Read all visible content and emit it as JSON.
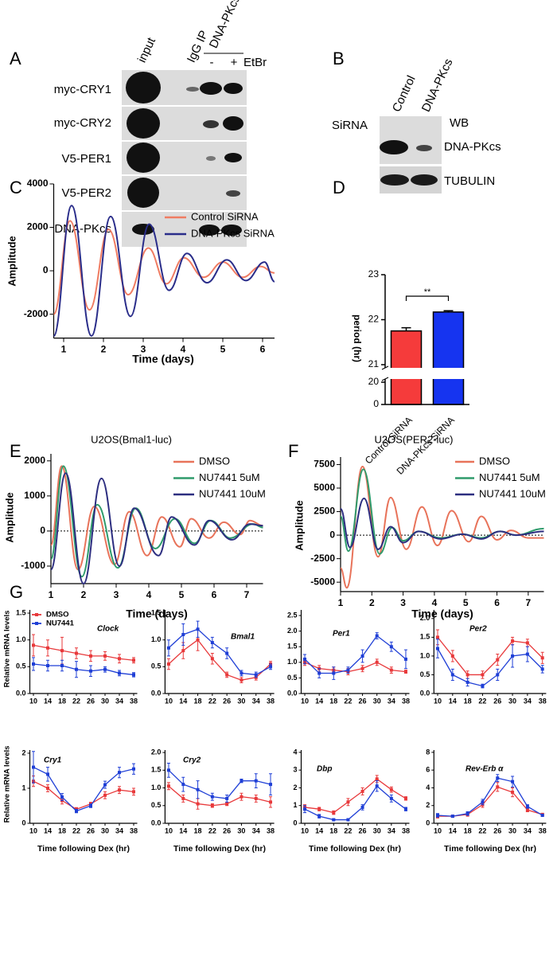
{
  "panel_a": {
    "label": "A",
    "columns": [
      "input",
      "IgG IP"
    ],
    "ip_label": "DNA-PKcs IP",
    "lanes": [
      "-",
      "+"
    ],
    "treatment": "EtBr",
    "rows": [
      "myc-CRY1",
      "myc-CRY2",
      "V5-PER1",
      "V5-PER2",
      "DNA-PKcs"
    ]
  },
  "panel_b": {
    "label": "B",
    "row_title": "SiRNA",
    "columns": [
      "Control",
      "DNA-PKcs"
    ],
    "method": "WB",
    "rows": [
      "DNA-PKcs",
      "TUBULIN"
    ]
  },
  "chart_data": [
    {
      "type": "line",
      "panel_label": "C",
      "ylabel": "Amplitude",
      "xlabel": "Time (days)",
      "xlim": [
        0.75,
        6.3
      ],
      "xticks": [
        1,
        2,
        3,
        4,
        5,
        6
      ],
      "ylim": [
        -3100,
        4000
      ],
      "yticks": [
        -2000,
        0,
        2000,
        4000
      ],
      "legend": true,
      "series": [
        {
          "name": "Control SiRNA",
          "color": "#f07c62",
          "x": [
            0.75,
            1.16,
            1.65,
            2.13,
            2.62,
            3.13,
            3.58,
            4.02,
            4.52,
            5.0,
            5.5,
            5.95,
            6.3
          ],
          "values": [
            -2000,
            2300,
            -1800,
            1900,
            -1100,
            1050,
            -600,
            600,
            -300,
            400,
            -300,
            200,
            -100
          ]
        },
        {
          "name": "DNA-PKcs SiRNA",
          "color": "#2a2d8a",
          "x": [
            0.75,
            1.2,
            1.7,
            2.18,
            2.68,
            3.15,
            3.65,
            4.1,
            4.6,
            5.1,
            5.58,
            6.05,
            6.3
          ],
          "values": [
            -3000,
            3000,
            -3000,
            2500,
            -2100,
            2150,
            -900,
            800,
            -550,
            500,
            -450,
            400,
            -500
          ]
        }
      ]
    },
    {
      "type": "bar",
      "panel_label": "D",
      "ylabel": "period (hr)",
      "categories": [
        "Control SiRNA",
        "DNA-PKcs SiRNA"
      ],
      "values": [
        21.75,
        22.17
      ],
      "errors": [
        0.07,
        0.03
      ],
      "colors": [
        "#f53b3b",
        "#1634f0"
      ],
      "ylim": [
        0,
        23
      ],
      "yticks": [
        0,
        20,
        21,
        22,
        23
      ],
      "axis_break": [
        20,
        21
      ],
      "annotation": "**"
    },
    {
      "type": "line",
      "panel_label": "E",
      "title": "U2OS(Bmal1-luc)",
      "ylabel": "Amplitude",
      "xlabel": "Time (days)",
      "xlim": [
        1,
        7.5
      ],
      "xticks": [
        1,
        2,
        3,
        4,
        5,
        6,
        7
      ],
      "ylim": [
        -1500,
        2200
      ],
      "yticks": [
        -1000,
        0,
        1000,
        2000
      ],
      "zero_line": true,
      "legend": true,
      "series": [
        {
          "name": "DMSO",
          "color": "#e8735a",
          "x": [
            1,
            1.33,
            1.83,
            2.33,
            2.95,
            3.4,
            3.95,
            4.4,
            4.95,
            5.3,
            5.85,
            6.3,
            6.8,
            7.1,
            7.5
          ],
          "values": [
            -400,
            1850,
            -1100,
            700,
            -950,
            550,
            -700,
            400,
            -450,
            350,
            -200,
            250,
            -100,
            300,
            150
          ]
        },
        {
          "name": "NU7441 5uM",
          "color": "#2f9b6c",
          "x": [
            1,
            1.38,
            1.95,
            2.42,
            3.05,
            3.6,
            4.2,
            4.8,
            5.4,
            5.9,
            6.5,
            7.2,
            7.5
          ],
          "values": [
            -800,
            1850,
            -1300,
            750,
            -1050,
            650,
            -500,
            350,
            -350,
            300,
            -200,
            200,
            100
          ]
        },
        {
          "name": "NU7441 10uM",
          "color": "#2d2e80",
          "x": [
            1,
            1.45,
            2.0,
            2.55,
            3.1,
            3.55,
            4.3,
            4.7,
            5.4,
            5.85,
            6.55,
            7.1,
            7.5
          ],
          "values": [
            -1100,
            1650,
            -1500,
            1500,
            -1000,
            650,
            -700,
            400,
            -400,
            300,
            -250,
            200,
            150
          ]
        }
      ]
    },
    {
      "type": "line",
      "panel_label": "F",
      "title": "U2OS(PER2-luc)",
      "ylabel": "Amplitude",
      "xlabel": "Time (days)",
      "xlim": [
        1,
        7.5
      ],
      "xticks": [
        1,
        2,
        3,
        4,
        5,
        6,
        7
      ],
      "ylim": [
        -6000,
        8300
      ],
      "yticks": [
        -5000,
        -2500,
        0,
        2500,
        5000,
        7500
      ],
      "zero_line": true,
      "legend": true,
      "series": [
        {
          "name": "DMSO",
          "color": "#e8735a",
          "x": [
            1,
            1.2,
            1.7,
            2.2,
            2.6,
            3.1,
            3.6,
            4.1,
            4.55,
            5.1,
            5.5,
            6.0,
            6.45,
            7.0,
            7.5
          ],
          "values": [
            -3500,
            -5600,
            7300,
            -2300,
            4000,
            -1500,
            3000,
            -1100,
            2600,
            -700,
            2000,
            -500,
            500,
            -300,
            -300
          ]
        },
        {
          "name": "NU7441 5uM",
          "color": "#2f9b6c",
          "x": [
            1,
            1.25,
            1.73,
            2.25,
            2.65,
            3.0,
            3.5,
            4.2,
            4.9,
            5.5,
            6.1,
            6.6,
            7.5
          ],
          "values": [
            2000,
            -1700,
            7000,
            -2000,
            800,
            -600,
            400,
            -300,
            100,
            -300,
            400,
            0,
            700
          ]
        },
        {
          "name": "NU7441 10uM",
          "color": "#2d2e80",
          "x": [
            1,
            1.3,
            1.75,
            2.2,
            2.6,
            3.0,
            3.5,
            4.2,
            4.9,
            5.5,
            6.1,
            6.6,
            7.5
          ],
          "values": [
            2800,
            -1300,
            3900,
            -1500,
            900,
            -800,
            400,
            -400,
            100,
            -400,
            400,
            0,
            400
          ]
        }
      ]
    },
    {
      "type": "line",
      "panel_label": "G",
      "title": "Clock",
      "ylabel": "Relative mRNA levels",
      "legend": true,
      "x": [
        10,
        14,
        18,
        22,
        26,
        30,
        34,
        38
      ],
      "xlim": [
        9,
        39
      ],
      "xticks": [
        10,
        14,
        18,
        22,
        26,
        30,
        34,
        38
      ],
      "ylim": [
        0,
        1.56
      ],
      "yticks": [
        {
          "value": 0,
          "label": "0.0"
        },
        0.5,
        {
          "value": 1,
          "label": "1.0"
        },
        1.5
      ],
      "series": [
        {
          "name": "DMSO",
          "color": "#e8393b",
          "values": [
            0.9,
            0.85,
            0.8,
            0.75,
            0.7,
            0.7,
            0.65,
            0.62
          ],
          "errors": [
            0.2,
            0.15,
            0.25,
            0.1,
            0.1,
            0.08,
            0.08,
            0.05
          ]
        },
        {
          "name": "NU7441",
          "color": "#1f3fd6",
          "values": [
            0.55,
            0.52,
            0.52,
            0.45,
            0.42,
            0.45,
            0.38,
            0.35
          ],
          "errors": [
            0.12,
            0.1,
            0.1,
            0.15,
            0.1,
            0.05,
            0.05,
            0.04
          ]
        }
      ]
    },
    {
      "type": "line",
      "title": "Bmal1",
      "x": [
        10,
        14,
        18,
        22,
        26,
        30,
        34,
        38
      ],
      "xlim": [
        9,
        39
      ],
      "xticks": [
        10,
        14,
        18,
        22,
        26,
        30,
        34,
        38
      ],
      "ylim": [
        0,
        1.56
      ],
      "yticks": [
        {
          "value": 0,
          "label": "0.0"
        },
        0.5,
        {
          "value": 1,
          "label": "1.0"
        },
        1.5
      ],
      "series": [
        {
          "color": "#e8393b",
          "values": [
            0.55,
            0.8,
            1.0,
            0.65,
            0.35,
            0.25,
            0.3,
            0.55
          ],
          "errors": [
            0.1,
            0.15,
            0.2,
            0.1,
            0.05,
            0.05,
            0.05,
            0.05
          ]
        },
        {
          "color": "#1f3fd6",
          "values": [
            0.85,
            1.1,
            1.2,
            0.95,
            0.75,
            0.38,
            0.35,
            0.5
          ],
          "errors": [
            0.15,
            0.2,
            0.15,
            0.1,
            0.1,
            0.05,
            0.05,
            0.05
          ]
        }
      ]
    },
    {
      "type": "line",
      "title": "Per1",
      "x": [
        10,
        14,
        18,
        22,
        26,
        30,
        34,
        38
      ],
      "xlim": [
        9,
        39
      ],
      "xticks": [
        10,
        14,
        18,
        22,
        26,
        30,
        34,
        38
      ],
      "ylim": [
        0,
        2.68
      ],
      "yticks": [
        {
          "value": 0,
          "label": "0.0"
        },
        0.5,
        {
          "value": 1,
          "label": "1.0"
        },
        1.5,
        {
          "value": 2,
          "label": "2.0"
        },
        2.5
      ],
      "series": [
        {
          "color": "#e8393b",
          "values": [
            1.0,
            0.8,
            0.75,
            0.7,
            0.8,
            1.0,
            0.75,
            0.7
          ],
          "errors": [
            0.1,
            0.1,
            0.1,
            0.1,
            0.1,
            0.1,
            0.1,
            0.05
          ]
        },
        {
          "color": "#1f3fd6",
          "values": [
            1.1,
            0.65,
            0.65,
            0.75,
            1.2,
            1.85,
            1.5,
            1.1
          ],
          "errors": [
            0.15,
            0.15,
            0.2,
            0.1,
            0.2,
            0.1,
            0.15,
            0.3
          ]
        }
      ]
    },
    {
      "type": "line",
      "title": "Per2",
      "x": [
        10,
        14,
        18,
        22,
        26,
        30,
        34,
        38
      ],
      "xlim": [
        9,
        39
      ],
      "xticks": [
        10,
        14,
        18,
        22,
        26,
        30,
        34,
        38
      ],
      "ylim": [
        0,
        2.23
      ],
      "yticks": [
        {
          "value": 0,
          "label": "0.0"
        },
        0.5,
        {
          "value": 1,
          "label": "1.0"
        },
        1.5,
        {
          "value": 2,
          "label": "2.0"
        }
      ],
      "series": [
        {
          "color": "#e8393b",
          "values": [
            1.5,
            1.0,
            0.5,
            0.5,
            0.9,
            1.4,
            1.35,
            0.95
          ],
          "errors": [
            0.2,
            0.15,
            0.1,
            0.1,
            0.15,
            0.1,
            0.1,
            0.15
          ]
        },
        {
          "color": "#1f3fd6",
          "values": [
            1.2,
            0.5,
            0.3,
            0.2,
            0.5,
            1.0,
            1.05,
            0.65
          ],
          "errors": [
            0.25,
            0.15,
            0.1,
            0.05,
            0.15,
            0.3,
            0.2,
            0.1
          ]
        }
      ]
    },
    {
      "type": "line",
      "title": "Cry1",
      "ylabel": "Relative mRNA levels",
      "xlabel": "Time following Dex (hr)",
      "x": [
        10,
        14,
        18,
        22,
        26,
        30,
        34,
        38
      ],
      "xlim": [
        9,
        39
      ],
      "xticks": [
        10,
        14,
        18,
        22,
        26,
        30,
        34,
        38
      ],
      "ylim": [
        0,
        2.09
      ],
      "yticks": [
        0,
        1,
        2
      ],
      "series": [
        {
          "color": "#e8393b",
          "values": [
            1.2,
            1.0,
            0.65,
            0.4,
            0.55,
            0.8,
            0.95,
            0.9
          ],
          "errors": [
            0.15,
            0.1,
            0.1,
            0.05,
            0.05,
            0.1,
            0.1,
            0.1
          ]
        },
        {
          "color": "#1f3fd6",
          "values": [
            1.6,
            1.4,
            0.75,
            0.35,
            0.5,
            1.1,
            1.45,
            1.55
          ],
          "errors": [
            0.45,
            0.2,
            0.1,
            0.05,
            0.05,
            0.1,
            0.15,
            0.15
          ]
        }
      ]
    },
    {
      "type": "line",
      "title": "Cry2",
      "xlabel": "Time following Dex (hr)",
      "x": [
        10,
        14,
        18,
        22,
        26,
        30,
        34,
        38
      ],
      "xlim": [
        9,
        39
      ],
      "xticks": [
        10,
        14,
        18,
        22,
        26,
        30,
        34,
        38
      ],
      "ylim": [
        0,
        2.07
      ],
      "yticks": [
        {
          "value": 0,
          "label": "0.0"
        },
        0.5,
        {
          "value": 1,
          "label": "1.0"
        },
        1.5,
        {
          "value": 2,
          "label": "2.0"
        }
      ],
      "series": [
        {
          "color": "#e8393b",
          "values": [
            1.05,
            0.7,
            0.55,
            0.5,
            0.55,
            0.75,
            0.7,
            0.6
          ],
          "errors": [
            0.1,
            0.1,
            0.15,
            0.05,
            0.05,
            0.1,
            0.1,
            0.15
          ]
        },
        {
          "color": "#1f3fd6",
          "values": [
            1.5,
            1.1,
            0.95,
            0.75,
            0.7,
            1.2,
            1.2,
            1.1
          ],
          "errors": [
            0.2,
            0.2,
            0.25,
            0.1,
            0.1,
            0.05,
            0.2,
            0.3
          ]
        }
      ]
    },
    {
      "type": "line",
      "title": "Dbp",
      "xlabel": "Time following Dex (hr)",
      "x": [
        10,
        14,
        18,
        22,
        26,
        30,
        34,
        38
      ],
      "xlim": [
        9,
        39
      ],
      "xticks": [
        10,
        14,
        18,
        22,
        26,
        30,
        34,
        38
      ],
      "ylim": [
        0,
        4.13
      ],
      "yticks": [
        0,
        1,
        2,
        3,
        4
      ],
      "series": [
        {
          "color": "#e8393b",
          "values": [
            0.9,
            0.8,
            0.6,
            1.2,
            1.8,
            2.5,
            1.9,
            1.4
          ],
          "errors": [
            0.15,
            0.1,
            0.1,
            0.2,
            0.2,
            0.2,
            0.15,
            0.1
          ]
        },
        {
          "color": "#1f3fd6",
          "values": [
            0.8,
            0.4,
            0.2,
            0.2,
            0.9,
            2.1,
            1.4,
            0.8
          ],
          "errors": [
            0.2,
            0.1,
            0.05,
            0.05,
            0.15,
            0.3,
            0.2,
            0.1
          ]
        }
      ]
    },
    {
      "type": "line",
      "title": "Rev-Erb α",
      "xlabel": "Time following Dex (hr)",
      "x": [
        10,
        14,
        18,
        22,
        26,
        30,
        34,
        38
      ],
      "xlim": [
        9,
        39
      ],
      "xticks": [
        10,
        14,
        18,
        22,
        26,
        30,
        34,
        38
      ],
      "ylim": [
        0,
        8.26
      ],
      "yticks": [
        0,
        2,
        4,
        6,
        8
      ],
      "series": [
        {
          "color": "#e8393b",
          "values": [
            0.8,
            0.8,
            1.0,
            2.1,
            4.1,
            3.5,
            1.5,
            1.0
          ],
          "errors": [
            0.2,
            0.1,
            0.2,
            0.3,
            0.5,
            0.5,
            0.2,
            0.1
          ]
        },
        {
          "color": "#1f3fd6",
          "values": [
            0.9,
            0.8,
            1.1,
            2.4,
            5.1,
            4.7,
            1.9,
            0.9
          ],
          "errors": [
            0.2,
            0.1,
            0.2,
            0.3,
            0.4,
            0.6,
            0.2,
            0.1
          ]
        }
      ]
    }
  ]
}
